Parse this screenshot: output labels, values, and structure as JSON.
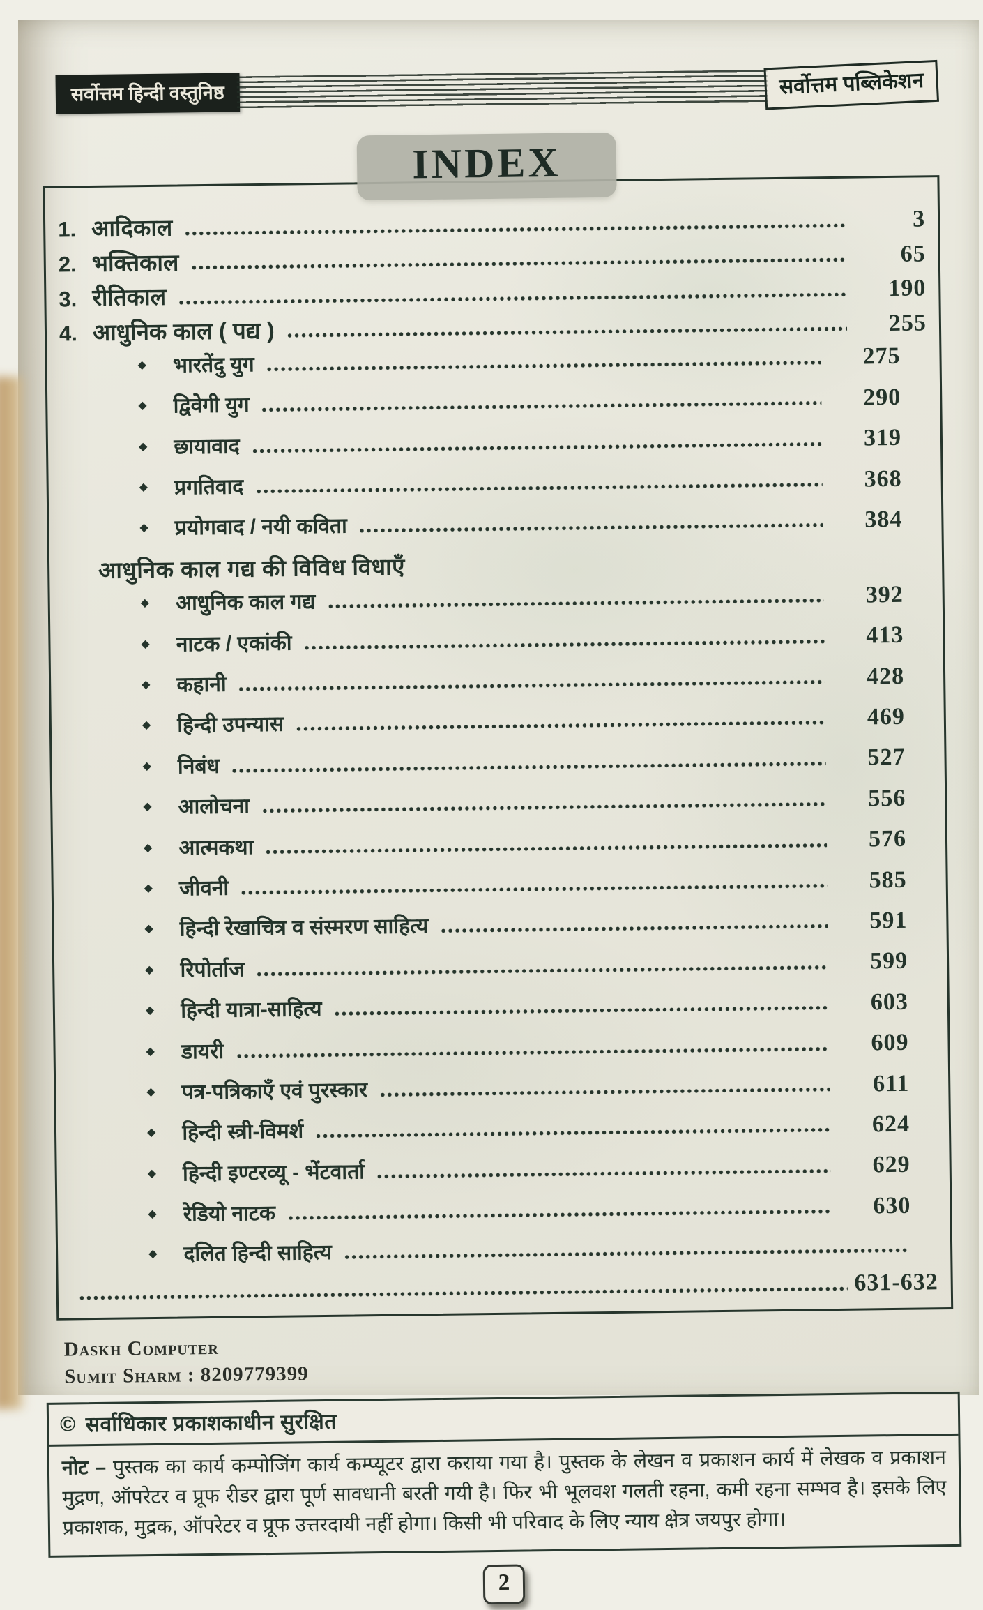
{
  "header": {
    "left_badge": "सर्वोत्तम हिन्दी वस्तुनिष्ठ",
    "right_badge": "सर्वोत्तम पब्लिकेशन",
    "title": "INDEX"
  },
  "index": {
    "bullet_glyph": "◆",
    "entries": [
      {
        "type": "numbered",
        "num": "1.",
        "label": "आदिकाल",
        "page": "3"
      },
      {
        "type": "numbered",
        "num": "2.",
        "label": "भक्तिकाल",
        "page": "65"
      },
      {
        "type": "numbered",
        "num": "3.",
        "label": "रीतिकाल",
        "page": "190"
      },
      {
        "type": "numbered",
        "num": "4.",
        "label": "आधुनिक काल ( पद्य )",
        "page": "255"
      },
      {
        "type": "bullet",
        "label": "भारतेंदु युग",
        "page": "275"
      },
      {
        "type": "bullet",
        "label": "द्विवेगी युग",
        "page": "290"
      },
      {
        "type": "bullet",
        "label": "छायावाद",
        "page": "319"
      },
      {
        "type": "bullet",
        "label": "प्रगतिवाद",
        "page": "368"
      },
      {
        "type": "bullet",
        "label": "प्रयोगवाद / नयी कविता",
        "page": "384"
      },
      {
        "type": "heading",
        "label": "आधुनिक काल गद्य की विविध विधाएँ"
      },
      {
        "type": "bullet",
        "label": "आधुनिक काल गद्य",
        "page": "392"
      },
      {
        "type": "bullet",
        "label": "नाटक / एकांकी",
        "page": "413"
      },
      {
        "type": "bullet",
        "label": "कहानी",
        "page": "428"
      },
      {
        "type": "bullet",
        "label": "हिन्दी उपन्यास",
        "page": "469"
      },
      {
        "type": "bullet",
        "label": "निबंध",
        "page": "527"
      },
      {
        "type": "bullet",
        "label": "आलोचना",
        "page": "556"
      },
      {
        "type": "bullet",
        "label": "आत्मकथा",
        "page": "576"
      },
      {
        "type": "bullet",
        "label": "जीवनी",
        "page": "585"
      },
      {
        "type": "bullet",
        "label": "हिन्दी रेखाचित्र व संस्मरण साहित्य",
        "page": "591"
      },
      {
        "type": "bullet",
        "label": "रिपोर्ताज",
        "page": "599"
      },
      {
        "type": "bullet",
        "label": "हिन्दी यात्रा-साहित्य",
        "page": "603"
      },
      {
        "type": "bullet",
        "label": "डायरी",
        "page": "609"
      },
      {
        "type": "bullet",
        "label": "पत्र-पत्रिकाएँ एवं पुरस्कार",
        "page": "611"
      },
      {
        "type": "bullet",
        "label": "हिन्दी स्त्री-विमर्श",
        "page": "624"
      },
      {
        "type": "bullet",
        "label": "हिन्दी इण्टरव्यू - भेंटवार्ता",
        "page": "629"
      },
      {
        "type": "bullet",
        "label": "रेडियो नाटक",
        "page": "630"
      },
      {
        "type": "bullet",
        "label": "दलित हिन्दी साहित्य",
        "page": ""
      },
      {
        "type": "continuation",
        "label": "",
        "page": "631-632"
      }
    ]
  },
  "footer": {
    "studio": "Daskh Computer",
    "contact": "Sumit Sharm : 8209779399",
    "copyright_symbol": "©",
    "copyright": "सर्वाधिकार प्रकाशकाधीन सुरक्षित",
    "note_label": "नोट –",
    "note_text": "पुस्तक का कार्य कम्पोजिंग कार्य कम्प्यूटर द्वारा कराया गया है। पुस्तक के लेखन व प्रकाशन कार्य में लेखक व प्रकाशन मुद्रण, ऑपरेटर व प्रूफ रीडर द्वारा पूर्ण सावधानी बरती गयी है। फिर भी भूलवश गलती रहना, कमी रहना सम्भव है। इसके लिए प्रकाशक, मुद्रक, ऑपरेटर व प्रूफ उत्तरदायी नहीं होगा। किसी भी परिवाद के लिए न्याय क्षेत्र जयपुर होगा।",
    "page_number": "2"
  },
  "colors": {
    "ink": "#24342b",
    "paper": "#e8e7dc",
    "badge_bg": "#1b211c",
    "title_panel_bg": "#b0b1a6",
    "page_edge_tan": "#c8a97c"
  }
}
